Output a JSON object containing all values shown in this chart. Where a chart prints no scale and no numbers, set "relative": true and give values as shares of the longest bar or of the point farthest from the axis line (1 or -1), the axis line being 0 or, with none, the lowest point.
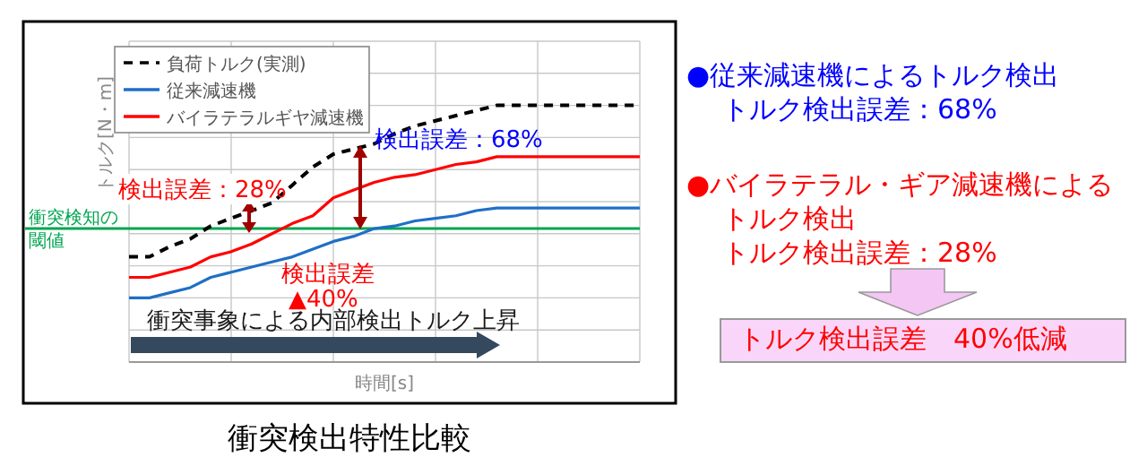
{
  "chart_data": {
    "type": "line",
    "title": "衝突検出特性比較",
    "xlabel": "時間[s]",
    "ylabel": "トルク[N・m]",
    "relative": true,
    "grid": true,
    "legend": "top left",
    "categories": [
      null,
      null,
      null,
      null,
      null,
      null,
      null,
      null,
      null,
      null,
      null,
      null,
      null,
      null,
      null,
      null,
      null,
      null,
      null,
      null,
      null,
      null,
      null,
      null,
      null,
      null
    ],
    "series": [
      {
        "name": "負荷トルク(実測)",
        "color": "#000000",
        "line_style": "dashed",
        "values": [
          0.41,
          0.41,
          0.45,
          0.48,
          0.53,
          0.56,
          0.59,
          0.62,
          0.69,
          0.76,
          0.81,
          0.83,
          0.85,
          0.89,
          0.92,
          0.94,
          0.96,
          0.98,
          1,
          1,
          1,
          1,
          1,
          1,
          1,
          1
        ]
      },
      {
        "name": "従来減速機",
        "color": "#1f6fc5",
        "values": [
          0.25,
          0.25,
          0.27,
          0.29,
          0.33,
          0.35,
          0.37,
          0.39,
          0.41,
          0.44,
          0.47,
          0.49,
          0.52,
          0.53,
          0.55,
          0.56,
          0.57,
          0.59,
          0.6,
          0.6,
          0.6,
          0.6,
          0.6,
          0.6,
          0.6,
          0.6
        ]
      },
      {
        "name": "バイラテラルギヤ減速機",
        "color": "#ff0000",
        "values": [
          0.33,
          0.33,
          0.35,
          0.37,
          0.41,
          0.43,
          0.46,
          0.5,
          0.54,
          0.57,
          0.64,
          0.67,
          0.7,
          0.72,
          0.73,
          0.75,
          0.77,
          0.78,
          0.8,
          0.8,
          0.8,
          0.8,
          0.8,
          0.8,
          0.8,
          0.8
        ]
      }
    ],
    "ref_lines": [
      {
        "axis": "y",
        "value": 0.52,
        "label": "衝突検知の閾値",
        "color": "#00a550"
      }
    ],
    "annotations": [
      "検出誤差：68%",
      "検出誤差：28%",
      "検出誤差",
      "▲40%",
      "衝突事象による内部検出トルク上昇",
      "●従来減速機によるトルク検出",
      "トルク検出誤差：68%",
      "●バイラテラル・ギア減速機による",
      "トルク検出",
      "トルク検出誤差：28%",
      "トルク検出誤差　40%低減"
    ]
  }
}
